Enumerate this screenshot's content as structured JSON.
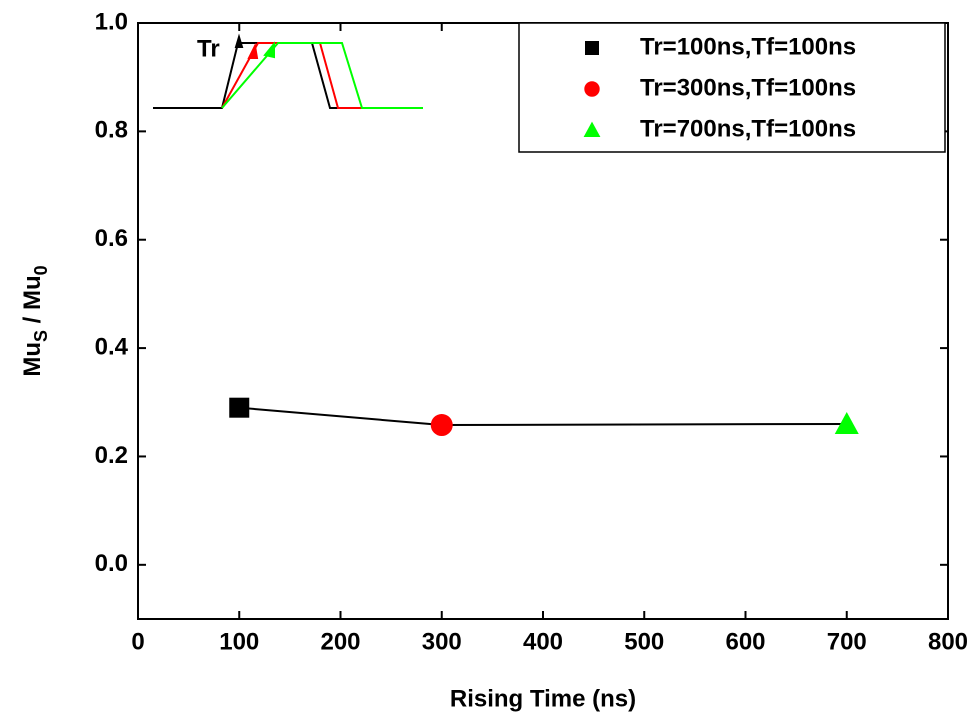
{
  "chart_data": {
    "type": "scatter",
    "xlabel": "Rising Time (ns)",
    "ylabel": [
      "Mu",
      "S",
      " / Mu",
      "0"
    ],
    "inset_label": "Tr",
    "xlim": [
      0,
      800
    ],
    "ylim": [
      -0.1,
      1.0
    ],
    "xticks": [
      0,
      100,
      200,
      300,
      400,
      500,
      600,
      700,
      800
    ],
    "yticks": [
      {
        "value": 0,
        "label": "0.0"
      },
      0.2,
      0.4,
      0.6,
      0.8,
      {
        "value": 1,
        "label": "1.0"
      }
    ],
    "connect": true,
    "line_color": "#000000",
    "legend": "upper-right",
    "series": [
      {
        "name": "Tr=100ns,Tf=100ns",
        "color": "#000000",
        "marker": "square",
        "x": [
          100
        ],
        "values": [
          0.29
        ]
      },
      {
        "name": "Tr=300ns,Tf=100ns",
        "color": "#ff0000",
        "marker": "circle",
        "x": [
          300
        ],
        "values": [
          0.258
        ]
      },
      {
        "name": "Tr=700ns,Tf=100ns",
        "color": "#00ff00",
        "marker": "triangle",
        "x": [
          700
        ],
        "values": [
          0.26
        ]
      }
    ]
  }
}
